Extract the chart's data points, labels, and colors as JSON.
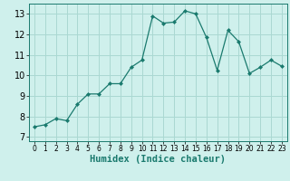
{
  "x": [
    0,
    1,
    2,
    3,
    4,
    5,
    6,
    7,
    8,
    9,
    10,
    11,
    12,
    13,
    14,
    15,
    16,
    17,
    18,
    19,
    20,
    21,
    22,
    23
  ],
  "y": [
    7.5,
    7.6,
    7.9,
    7.8,
    8.6,
    9.1,
    9.1,
    9.6,
    9.6,
    10.4,
    10.75,
    12.9,
    12.55,
    12.6,
    13.15,
    13.0,
    11.85,
    10.25,
    12.2,
    11.65,
    10.1,
    10.4,
    10.75,
    10.45
  ],
  "line_color": "#1a7a6e",
  "marker": "D",
  "marker_size": 2.0,
  "bg_color": "#cff0ec",
  "grid_color": "#aad8d2",
  "xlabel": "Humidex (Indice chaleur)",
  "xlim": [
    -0.5,
    23.5
  ],
  "ylim": [
    6.8,
    13.5
  ],
  "yticks": [
    7,
    8,
    9,
    10,
    11,
    12,
    13
  ],
  "xticks": [
    0,
    1,
    2,
    3,
    4,
    5,
    6,
    7,
    8,
    9,
    10,
    11,
    12,
    13,
    14,
    15,
    16,
    17,
    18,
    19,
    20,
    21,
    22,
    23
  ],
  "xlabel_fontsize": 7.5,
  "tick_fontsize": 7
}
